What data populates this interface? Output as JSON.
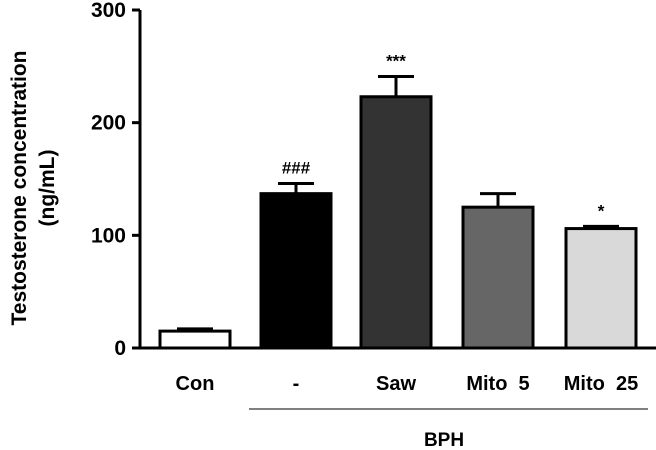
{
  "chart_data": {
    "type": "bar",
    "categories": [
      "Con",
      "-",
      "Saw",
      "Mito  5",
      "Mito  25"
    ],
    "values": [
      15,
      137,
      223,
      125,
      106
    ],
    "errors": [
      2,
      9,
      18,
      12,
      2
    ],
    "annotations": [
      "",
      "###",
      "***",
      "",
      "*"
    ],
    "bar_colors": [
      "#ffffff",
      "#000000",
      "#333333",
      "#666666",
      "#d9d9d9"
    ],
    "ylabel_line1": "Testosterone concentration",
    "ylabel_line2": "(ng/mL)",
    "ylim": [
      0,
      300
    ],
    "yticks": [
      "0",
      "100",
      "200",
      "300"
    ],
    "group_label": "BPH"
  }
}
